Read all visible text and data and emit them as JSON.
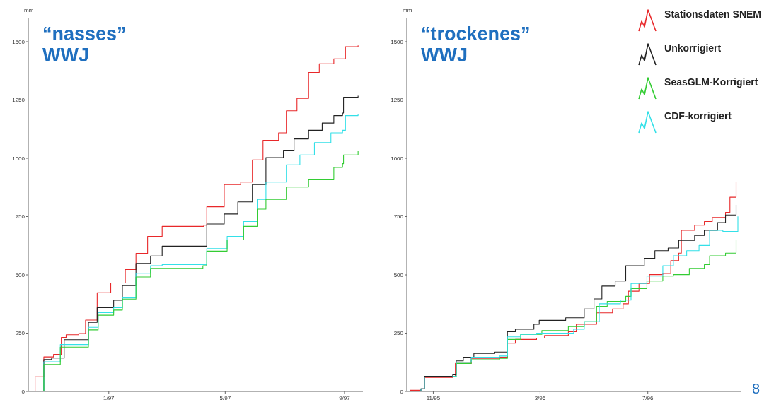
{
  "chart_data": [
    {
      "type": "step",
      "title": "“nasses” WWJ",
      "ylabel": "mm",
      "xlim": [
        "1996-10-10",
        "1997-09-20"
      ],
      "xticks": [
        {
          "value": "1997-01-01",
          "label": "1/97"
        },
        {
          "value": "1997-05-01",
          "label": "5/97"
        },
        {
          "value": "1997-09-01",
          "label": "9/97"
        }
      ],
      "ylim": [
        0,
        1600
      ],
      "yticks": [
        0,
        250,
        500,
        750,
        1000,
        1250,
        1500
      ],
      "grid": false,
      "legend": false,
      "series": [
        {
          "color": "#e8282a",
          "x": [
            "1996-10-10",
            "1996-10-17",
            "1996-10-26",
            "1996-11-05",
            "1996-11-13",
            "1996-11-18",
            "1996-12-01",
            "1996-12-08",
            "1996-12-20",
            "1997-01-03",
            "1997-01-18",
            "1997-01-29",
            "1997-02-10",
            "1997-02-25",
            "1997-04-09",
            "1997-04-12",
            "1997-04-30",
            "1997-05-17",
            "1997-05-29",
            "1997-06-09",
            "1997-06-25",
            "1997-07-03",
            "1997-07-14",
            "1997-07-26",
            "1997-08-06",
            "1997-08-21",
            "1997-09-02",
            "1997-09-15"
          ],
          "values": [
            0,
            63,
            148,
            159,
            232,
            243,
            248,
            306,
            423,
            465,
            523,
            592,
            665,
            708,
            713,
            792,
            887,
            898,
            993,
            1077,
            1109,
            1204,
            1257,
            1368,
            1405,
            1426,
            1479,
            1484
          ]
        },
        {
          "color": "#222222",
          "x": [
            "1996-10-10",
            "1996-10-26",
            "1996-11-03",
            "1996-11-16",
            "1996-12-01",
            "1996-12-11",
            "1996-12-20",
            "1997-01-06",
            "1997-01-15",
            "1997-01-29",
            "1997-02-13",
            "1997-02-25",
            "1997-04-08",
            "1997-04-12",
            "1997-04-30",
            "1997-05-14",
            "1997-05-29",
            "1997-06-12",
            "1997-06-30",
            "1997-07-11",
            "1997-07-26",
            "1997-08-09",
            "1997-08-21",
            "1997-08-30",
            "1997-08-31",
            "1997-09-15"
          ],
          "values": [
            0,
            137,
            143,
            222,
            222,
            296,
            359,
            391,
            454,
            549,
            581,
            623,
            623,
            718,
            761,
            813,
            887,
            1003,
            1035,
            1083,
            1120,
            1151,
            1183,
            1194,
            1262,
            1268
          ]
        },
        {
          "color": "#33e0e8",
          "x": [
            "1996-10-10",
            "1996-10-26",
            "1996-11-12",
            "1996-12-01",
            "1996-12-11",
            "1996-12-21",
            "1997-01-06",
            "1997-01-15",
            "1997-01-29",
            "1997-02-13",
            "1997-02-25",
            "1997-04-08",
            "1997-04-12",
            "1997-05-03",
            "1997-05-20",
            "1997-06-03",
            "1997-06-12",
            "1997-07-03",
            "1997-07-17",
            "1997-08-01",
            "1997-08-18",
            "1997-08-30",
            "1997-09-02",
            "1997-09-15"
          ],
          "values": [
            0,
            127,
            201,
            201,
            275,
            338,
            359,
            401,
            507,
            539,
            544,
            544,
            613,
            665,
            729,
            824,
            898,
            972,
            1014,
            1067,
            1109,
            1120,
            1183,
            1188
          ]
        },
        {
          "color": "#33cc33",
          "x": [
            "1996-10-10",
            "1996-10-26",
            "1996-11-12",
            "1996-12-01",
            "1996-12-11",
            "1996-12-21",
            "1997-01-06",
            "1997-01-15",
            "1997-01-29",
            "1997-02-13",
            "1997-04-08",
            "1997-04-12",
            "1997-05-03",
            "1997-05-20",
            "1997-06-03",
            "1997-06-12",
            "1997-07-03",
            "1997-07-26",
            "1997-08-21",
            "1997-08-30",
            "1997-08-31",
            "1997-09-15"
          ],
          "values": [
            0,
            116,
            190,
            190,
            264,
            327,
            349,
            396,
            491,
            528,
            539,
            602,
            650,
            708,
            782,
            824,
            877,
            908,
            961,
            977,
            1014,
            1030
          ]
        }
      ]
    },
    {
      "type": "step",
      "title": "“trockenes” WWJ",
      "ylabel": "mm",
      "xlim": [
        "1995-10-02",
        "1996-10-15"
      ],
      "xticks": [
        {
          "value": "1995-11-01",
          "label": "11/95"
        },
        {
          "value": "1996-03-01",
          "label": "3/96"
        },
        {
          "value": "1996-07-01",
          "label": "7/96"
        }
      ],
      "ylim": [
        0,
        1600
      ],
      "yticks": [
        0,
        250,
        500,
        750,
        1000,
        1250,
        1500
      ],
      "grid": false,
      "legend": "top right",
      "annotations": [
        "8"
      ],
      "series": [
        {
          "name": "Stationsdaten SNEM",
          "color": "#e8282a",
          "x": [
            "1995-10-02",
            "1995-10-06",
            "1995-10-18",
            "1995-10-22",
            "1995-11-23",
            "1995-11-26",
            "1995-12-14",
            "1996-01-15",
            "1996-01-24",
            "1996-02-02",
            "1996-02-26",
            "1996-03-06",
            "1996-04-02",
            "1996-04-11",
            "1996-05-04",
            "1996-05-22",
            "1996-06-03",
            "1996-06-09",
            "1996-06-21",
            "1996-07-03",
            "1996-07-18",
            "1996-07-27",
            "1996-08-05",
            "1996-08-08",
            "1996-08-23",
            "1996-09-03",
            "1996-09-12",
            "1996-09-27",
            "1996-10-02",
            "1996-10-09"
          ],
          "values": [
            0,
            5,
            11,
            60,
            62,
            120,
            142,
            147,
            207,
            223,
            229,
            240,
            256,
            288,
            337,
            354,
            376,
            430,
            463,
            501,
            506,
            561,
            593,
            691,
            713,
            729,
            746,
            768,
            833,
            898
          ]
        },
        {
          "name": "Unkorrigiert",
          "color": "#222222",
          "x": [
            "1995-10-02",
            "1995-10-18",
            "1995-10-22",
            "1995-11-23",
            "1995-11-27",
            "1995-12-05",
            "1995-12-17",
            "1996-01-09",
            "1996-01-24",
            "1996-02-02",
            "1996-02-23",
            "1996-02-29",
            "1996-03-30",
            "1996-04-20",
            "1996-05-01",
            "1996-05-10",
            "1996-05-25",
            "1996-06-06",
            "1996-06-27",
            "1996-07-09",
            "1996-07-24",
            "1996-08-05",
            "1996-08-23",
            "1996-09-03",
            "1996-09-18",
            "1996-09-27",
            "1996-10-09"
          ],
          "values": [
            0,
            11,
            65,
            71,
            131,
            147,
            163,
            169,
            256,
            267,
            288,
            305,
            316,
            354,
            397,
            452,
            474,
            539,
            571,
            604,
            615,
            648,
            669,
            691,
            724,
            757,
            800
          ]
        },
        {
          "name": "SeasGLM-Korrigiert",
          "color": "#33cc33",
          "x": [
            "1995-11-23",
            "1995-11-27",
            "1995-12-14",
            "1996-01-15",
            "1996-01-24",
            "1996-02-08",
            "1996-03-03",
            "1996-04-02",
            "1996-04-20",
            "1996-05-04",
            "1996-05-16",
            "1996-06-06",
            "1996-06-12",
            "1996-06-30",
            "1996-07-18",
            "1996-07-30",
            "1996-08-17",
            "1996-09-03",
            "1996-09-09",
            "1996-09-27",
            "1996-10-09"
          ],
          "values": [
            65,
            120,
            136,
            142,
            223,
            245,
            261,
            278,
            299,
            365,
            386,
            408,
            441,
            474,
            495,
            501,
            528,
            544,
            582,
            593,
            653
          ]
        },
        {
          "name": "CDF-korrigiert",
          "color": "#33e0e8",
          "x": [
            "1995-10-02",
            "1995-10-18",
            "1995-10-22",
            "1995-11-23",
            "1995-11-27",
            "1995-12-14",
            "1996-01-15",
            "1996-01-24",
            "1996-02-08",
            "1996-02-26",
            "1996-04-08",
            "1996-04-20",
            "1996-05-07",
            "1996-05-31",
            "1996-06-12",
            "1996-06-30",
            "1996-07-18",
            "1996-07-30",
            "1996-08-14",
            "1996-08-28",
            "1996-09-09",
            "1996-09-24",
            "1996-10-11"
          ],
          "values": [
            0,
            11,
            62,
            64,
            125,
            147,
            152,
            234,
            245,
            250,
            267,
            299,
            376,
            392,
            463,
            495,
            539,
            582,
            604,
            626,
            691,
            686,
            751
          ]
        }
      ]
    }
  ]
}
